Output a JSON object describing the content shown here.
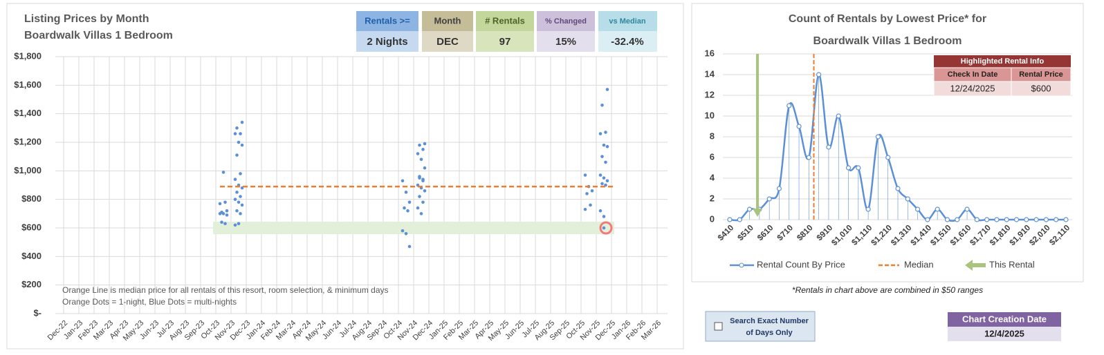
{
  "chart_data": [
    {
      "type": "scatter",
      "title": "Listing Prices by Month",
      "subtitle": "Boardwalk Villas 1 Bedroom",
      "categories": [
        "Dec-22",
        "Jan-23",
        "Feb-23",
        "Mar-23",
        "Apr-23",
        "May-23",
        "Jun-23",
        "Jul-23",
        "Aug-23",
        "Sep-23",
        "Oct-23",
        "Nov-23",
        "Dec-23",
        "Jan-24",
        "Feb-24",
        "Mar-24",
        "Apr-24",
        "May-24",
        "Jun-24",
        "Jul-24",
        "Aug-24",
        "Sep-24",
        "Oct-24",
        "Nov-24",
        "Dec-24",
        "Jan-25",
        "Feb-25",
        "Mar-25",
        "Apr-25",
        "May-25",
        "Jun-25",
        "Jul-25",
        "Aug-25",
        "Sep-25",
        "Oct-25",
        "Nov-25",
        "Dec-25",
        "Jan-26",
        "Feb-26",
        "Mar-26"
      ],
      "ylim": [
        0,
        1800
      ],
      "yticks": [
        {
          "value": 0,
          "label": "$-"
        },
        {
          "value": 200,
          "label": "$200"
        },
        {
          "value": 400,
          "label": "$400"
        },
        {
          "value": 600,
          "label": "$600"
        },
        {
          "value": 800,
          "label": "$800"
        },
        {
          "value": 1000,
          "label": "$1,000"
        },
        {
          "value": 1200,
          "label": "$1,200"
        },
        {
          "value": 1400,
          "label": "$1,400"
        },
        {
          "value": 1600,
          "label": "$1,600"
        },
        {
          "value": 1800,
          "label": "$1,800"
        }
      ],
      "grid": true,
      "series": [
        {
          "color": "#5b8fd6",
          "x": [
            "Nov-23",
            "Nov-23",
            "Nov-23",
            "Nov-23",
            "Nov-23",
            "Nov-23",
            "Nov-23",
            "Nov-23",
            "Nov-23",
            "Nov-23",
            "Dec-23",
            "Dec-23",
            "Dec-23",
            "Dec-23",
            "Dec-23",
            "Dec-23",
            "Dec-23",
            "Dec-23",
            "Dec-23",
            "Dec-23",
            "Dec-23",
            "Dec-23",
            "Dec-23",
            "Dec-23",
            "Dec-23",
            "Dec-23",
            "Dec-23",
            "Dec-23",
            "Dec-23",
            "Dec-23",
            "Nov-24",
            "Nov-24",
            "Nov-24",
            "Nov-24",
            "Nov-24",
            "Nov-24",
            "Nov-24",
            "Nov-24",
            "Dec-24",
            "Dec-24",
            "Dec-24",
            "Dec-24",
            "Dec-24",
            "Dec-24",
            "Dec-24",
            "Dec-24",
            "Dec-24",
            "Dec-24",
            "Dec-24",
            "Dec-24",
            "Dec-24",
            "Dec-24",
            "Dec-24",
            "Dec-24",
            "Dec-24",
            "Nov-25",
            "Nov-25",
            "Nov-25",
            "Nov-25",
            "Nov-25",
            "Nov-25",
            "Dec-25",
            "Dec-25",
            "Dec-25",
            "Dec-25",
            "Dec-25",
            "Dec-25",
            "Dec-25",
            "Dec-25",
            "Dec-25",
            "Dec-25",
            "Dec-25",
            "Dec-25",
            "Dec-25",
            "Dec-25",
            "Dec-25",
            "Dec-25"
          ],
          "values": [
            700,
            990,
            720,
            710,
            780,
            770,
            700,
            690,
            640,
            630,
            620,
            630,
            1340,
            1300,
            1260,
            1260,
            1200,
            1180,
            1110,
            980,
            940,
            900,
            880,
            850,
            820,
            800,
            780,
            760,
            720,
            700,
            930,
            850,
            780,
            740,
            720,
            580,
            560,
            470,
            950,
            930,
            900,
            880,
            860,
            820,
            780,
            740,
            700,
            1190,
            1180,
            1150,
            1120,
            1080,
            1020,
            960,
            940,
            970,
            890,
            860,
            840,
            760,
            730,
            600,
            1570,
            1460,
            1270,
            1260,
            1180,
            1170,
            1100,
            1060,
            970,
            950,
            930,
            910,
            900,
            720,
            680
          ]
        }
      ],
      "median_line": {
        "value": 890,
        "color": "#ed7d31"
      },
      "highlight": {
        "x": "Dec-25",
        "value": 600,
        "color": "#f4787a",
        "band_color": "#e2efd9"
      },
      "annotations": [
        "Orange Line is median price for all rentals of this resort, room selection, & minimum days",
        "Orange Dots = 1-night, Blue Dots = multi-nights"
      ]
    },
    {
      "type": "line",
      "title": "Count of Rentals by Lowest Price* for",
      "subtitle": "Boardwalk Villas 1 Bedroom",
      "categories": [
        "$410",
        null,
        "$510",
        null,
        "$610",
        null,
        "$710",
        null,
        "$810",
        null,
        "$910",
        null,
        "$1,010",
        null,
        "$1,110",
        null,
        "$1,210",
        null,
        "$1,310",
        null,
        "$1,410",
        null,
        "$1,510",
        null,
        "$1,610",
        null,
        "$1,710",
        null,
        "$1,810",
        null,
        "$1,910",
        null,
        "$2,010",
        null,
        "$2,110"
      ],
      "xlim": [
        410,
        2110
      ],
      "ylim": [
        0,
        16
      ],
      "yticks": [
        0,
        2,
        4,
        6,
        8,
        10,
        12,
        14,
        16
      ],
      "series": [
        {
          "name": "Rental Count By Price",
          "color": "#5b8fd6",
          "values": [
            0,
            0,
            1,
            1,
            2,
            3,
            11,
            9,
            6,
            14,
            7,
            10,
            5,
            5,
            1,
            8,
            6,
            3,
            2,
            1,
            0,
            1,
            0,
            0,
            1,
            0,
            0,
            0,
            0,
            0,
            0,
            0,
            0,
            0,
            0
          ]
        }
      ],
      "reference_lines": [
        {
          "name": "Median",
          "x": 835,
          "color": "#ed7d31"
        },
        {
          "name": "This Rental",
          "x": 550,
          "color": "#a9c47f"
        }
      ],
      "legend": "bottom"
    }
  ],
  "kpis": [
    {
      "header": "Rentals >=",
      "value": "2 Nights"
    },
    {
      "header": "Month",
      "value": "DEC"
    },
    {
      "header": "# Rentals",
      "value": "97"
    },
    {
      "header": "% Changed",
      "value": "15%"
    },
    {
      "header": "vs Median",
      "value": "-32.4%"
    }
  ],
  "highlight_table": {
    "title": "Highlighted Rental Info",
    "headers": [
      "Check In Date",
      "Rental Price"
    ],
    "row": [
      "12/24/2025",
      "$600"
    ]
  },
  "footnote": "*Rentals in chart above are combined in $50 ranges",
  "controls": {
    "exact_days": [
      "Search Exact Number",
      "of Days Only"
    ],
    "creation_date": {
      "title": "Chart Creation Date",
      "value": "12/4/2025"
    }
  }
}
